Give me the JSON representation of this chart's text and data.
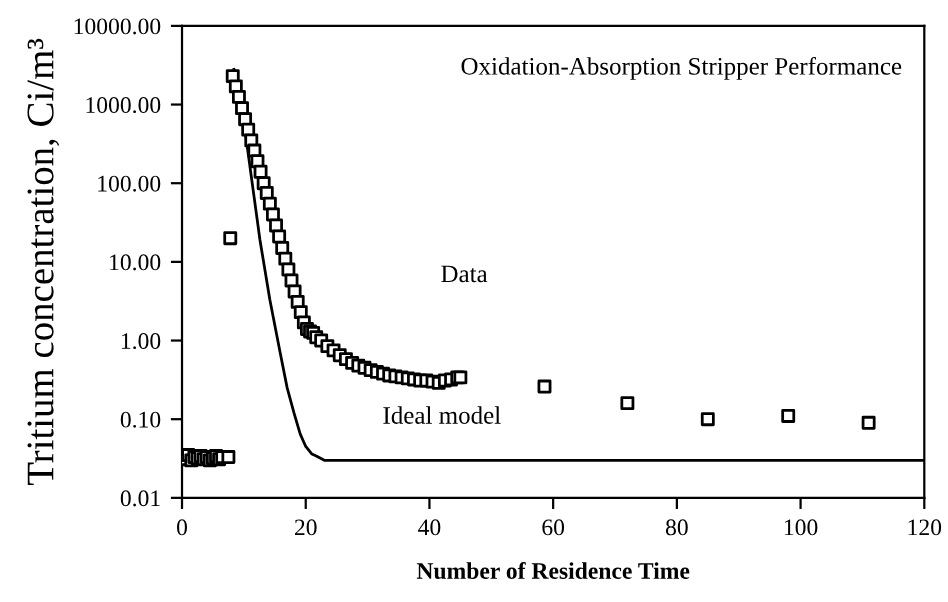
{
  "chart_data": {
    "type": "scatter",
    "title": "Oxidation-Absorption Stripper Performance",
    "xlabel": "Number of Residence Time",
    "ylabel": "Tritium concentration, Ci/m³",
    "log": "y",
    "xlim": [
      0,
      120
    ],
    "xticks": [
      0,
      20,
      40,
      60,
      80,
      100,
      120
    ],
    "ylim": [
      0.01,
      10000
    ],
    "yticks": [
      {
        "value": 0.01,
        "label": "0.01"
      },
      {
        "value": 0.1,
        "label": "0.10"
      },
      {
        "value": 1,
        "label": "1.00"
      },
      {
        "value": 10,
        "label": "10.00"
      },
      {
        "value": 100,
        "label": "100.00"
      },
      {
        "value": 1000,
        "label": "1000.00"
      },
      {
        "value": 10000,
        "label": "10000.00"
      }
    ],
    "grid": false,
    "legend": false,
    "annotations": [
      "Data",
      "Ideal model"
    ],
    "series": [
      {
        "marker": "square",
        "color": "#000000",
        "x": [
          0.5,
          1,
          1.5,
          2,
          2.5,
          3,
          3.5,
          4,
          4.5,
          5,
          5.5,
          6,
          6.5,
          7.5,
          7.8,
          8.2,
          8.7,
          9.2,
          9.7,
          10.2,
          10.7,
          11.2,
          11.7,
          12.2,
          12.7,
          13.2,
          13.7,
          14.2,
          14.7,
          15.2,
          15.7,
          16.2,
          16.7,
          17.2,
          17.7,
          18.2,
          18.7,
          19.2,
          19.7,
          20.2,
          20.7,
          21.2,
          21.7,
          22.5,
          23.5,
          24.5,
          25.5,
          26.5,
          27.5,
          28.5,
          29.5,
          30.5,
          31.5,
          32.5,
          33.5,
          34.5,
          35.5,
          36.5,
          37.5,
          38.5,
          39.5,
          40.5,
          41.5,
          42.5,
          43.5,
          44.5,
          45,
          58.6,
          72,
          85,
          98,
          111
        ],
        "values": [
          0.031,
          0.035,
          0.03,
          0.033,
          0.032,
          0.034,
          0.031,
          0.033,
          0.03,
          0.032,
          0.034,
          0.031,
          0.033,
          0.033,
          20,
          2300,
          1700,
          1250,
          900,
          650,
          480,
          350,
          260,
          190,
          140,
          100,
          75,
          55,
          40,
          29,
          21,
          15,
          11,
          8,
          5.8,
          4.2,
          3.1,
          2.3,
          1.7,
          1.4,
          1.3,
          1.25,
          1.1,
          1.0,
          0.85,
          0.75,
          0.65,
          0.58,
          0.52,
          0.48,
          0.45,
          0.42,
          0.4,
          0.38,
          0.36,
          0.35,
          0.34,
          0.33,
          0.32,
          0.31,
          0.31,
          0.3,
          0.29,
          0.31,
          0.32,
          0.34,
          0.34,
          0.26,
          0.16,
          0.1,
          0.11,
          0.09
        ]
      },
      {
        "type": "line",
        "marker": "none",
        "color": "#000000",
        "x": [
          8.4,
          10,
          12.6,
          14.2,
          15.9,
          17,
          18.1,
          19.1,
          20,
          21,
          21.7,
          23,
          120
        ],
        "values": [
          2800,
          600,
          19,
          3.3,
          0.68,
          0.25,
          0.12,
          0.065,
          0.045,
          0.036,
          0.034,
          0.03,
          0.03
        ]
      }
    ]
  }
}
